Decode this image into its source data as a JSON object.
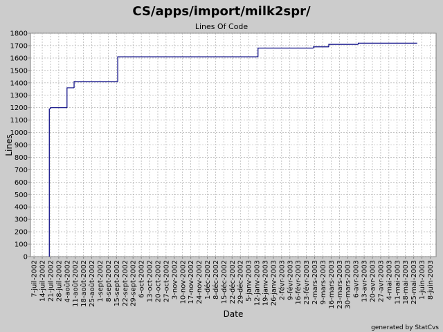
{
  "chart_data": {
    "type": "line",
    "step": true,
    "title": "CS/apps/import/milk2spr/",
    "subtitle": "Lines Of Code",
    "x_label": "Date",
    "y_label": "Lines",
    "footer": "generated by StatCvs",
    "x": [
      "2002-07-20",
      "2002-07-20",
      "2002-07-21",
      "2002-08-04",
      "2002-08-10",
      "2002-09-16",
      "2003-01-13",
      "2003-03-01",
      "2003-03-14",
      "2003-04-08",
      "2003-05-28"
    ],
    "series": [
      {
        "name": "Lines",
        "color": "#000080",
        "values": [
          0,
          1190,
          1200,
          1360,
          1410,
          1610,
          1680,
          1690,
          1710,
          1720,
          1720
        ]
      }
    ],
    "xlim": [
      "2002-07-04",
      "2003-06-13"
    ],
    "xticks": [
      {
        "value": "2002-07-07",
        "label": "7-juil-2002"
      },
      {
        "value": "2002-07-14",
        "label": "14-juil-2002"
      },
      {
        "value": "2002-07-21",
        "label": "21-juil-2002"
      },
      {
        "value": "2002-07-28",
        "label": "28-juil-2002"
      },
      {
        "value": "2002-08-04",
        "label": "4-août-2002"
      },
      {
        "value": "2002-08-11",
        "label": "11-août-2002"
      },
      {
        "value": "2002-08-18",
        "label": "18-août-2002"
      },
      {
        "value": "2002-08-25",
        "label": "25-août-2002"
      },
      {
        "value": "2002-09-01",
        "label": "1-sept-2002"
      },
      {
        "value": "2002-09-08",
        "label": "8-sept-2002"
      },
      {
        "value": "2002-09-15",
        "label": "15-sept-2002"
      },
      {
        "value": "2002-09-22",
        "label": "22-sept-2002"
      },
      {
        "value": "2002-09-29",
        "label": "29-sept-2002"
      },
      {
        "value": "2002-10-06",
        "label": "6-oct-2002"
      },
      {
        "value": "2002-10-13",
        "label": "13-oct-2002"
      },
      {
        "value": "2002-10-20",
        "label": "20-oct-2002"
      },
      {
        "value": "2002-10-27",
        "label": "27-oct-2002"
      },
      {
        "value": "2002-11-03",
        "label": "3-nov-2002"
      },
      {
        "value": "2002-11-10",
        "label": "10-nov-2002"
      },
      {
        "value": "2002-11-17",
        "label": "17-nov-2002"
      },
      {
        "value": "2002-11-24",
        "label": "24-nov-2002"
      },
      {
        "value": "2002-12-01",
        "label": "1-déc-2002"
      },
      {
        "value": "2002-12-08",
        "label": "8-déc-2002"
      },
      {
        "value": "2002-12-15",
        "label": "15-déc-2002"
      },
      {
        "value": "2002-12-22",
        "label": "22-déc-2002"
      },
      {
        "value": "2002-12-29",
        "label": "29-déc-2002"
      },
      {
        "value": "2003-01-05",
        "label": "5-janv-2003"
      },
      {
        "value": "2003-01-12",
        "label": "12-janv-2003"
      },
      {
        "value": "2003-01-19",
        "label": "19-janv-2003"
      },
      {
        "value": "2003-01-26",
        "label": "26-janv-2003"
      },
      {
        "value": "2003-02-02",
        "label": "2-févr-2003"
      },
      {
        "value": "2003-02-09",
        "label": "9-févr-2003"
      },
      {
        "value": "2003-02-16",
        "label": "16-févr-2003"
      },
      {
        "value": "2003-02-23",
        "label": "23-févr-2003"
      },
      {
        "value": "2003-03-02",
        "label": "2-mars-2003"
      },
      {
        "value": "2003-03-09",
        "label": "9-mars-2003"
      },
      {
        "value": "2003-03-16",
        "label": "16-mars-2003"
      },
      {
        "value": "2003-03-23",
        "label": "23-mars-2003"
      },
      {
        "value": "2003-03-30",
        "label": "30-mars-2003"
      },
      {
        "value": "2003-04-06",
        "label": "6-avr-2003"
      },
      {
        "value": "2003-04-13",
        "label": "13-avr-2003"
      },
      {
        "value": "2003-04-20",
        "label": "20-avr-2003"
      },
      {
        "value": "2003-04-27",
        "label": "27-avr-2003"
      },
      {
        "value": "2003-05-04",
        "label": "4-mai-2003"
      },
      {
        "value": "2003-05-11",
        "label": "11-mai-2003"
      },
      {
        "value": "2003-05-18",
        "label": "18-mai-2003"
      },
      {
        "value": "2003-05-25",
        "label": "25-mai-2003"
      },
      {
        "value": "2003-06-01",
        "label": "1-juin-2003"
      },
      {
        "value": "2003-06-08",
        "label": "8-juin-2003"
      }
    ],
    "ylim": [
      0,
      1800
    ],
    "yticks": [
      0,
      100,
      200,
      300,
      400,
      500,
      600,
      700,
      800,
      900,
      1000,
      1100,
      1200,
      1300,
      1400,
      1500,
      1600,
      1700,
      1800
    ],
    "grid": true
  }
}
